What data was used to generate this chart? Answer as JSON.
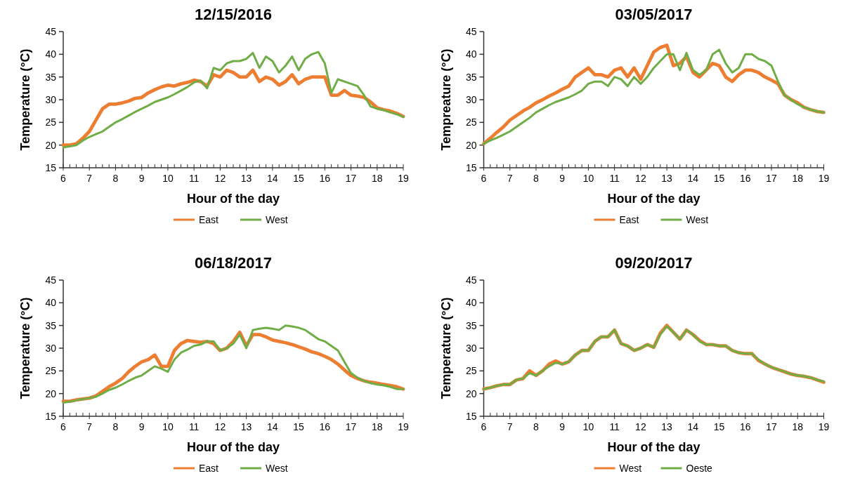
{
  "chart_data": [
    {
      "type": "line",
      "title": "12/15/2016",
      "xlabel": "Hour of the day",
      "ylabel": "Temperature  (°C)",
      "xlim": [
        6,
        19
      ],
      "ylim": [
        15,
        45
      ],
      "xticks": [
        6,
        7,
        8,
        9,
        10,
        11,
        12,
        13,
        14,
        15,
        16,
        17,
        18,
        19
      ],
      "yticks": [
        15,
        20,
        25,
        30,
        35,
        40,
        45
      ],
      "legend": "bottom",
      "grid": false,
      "marker": "none",
      "line_style": "solid",
      "x": [
        6,
        6.25,
        6.5,
        6.75,
        7,
        7.25,
        7.5,
        7.75,
        8,
        8.25,
        8.5,
        8.75,
        9,
        9.25,
        9.5,
        9.75,
        10,
        10.25,
        10.5,
        10.75,
        11,
        11.25,
        11.5,
        11.75,
        12,
        12.25,
        12.5,
        12.75,
        13,
        13.25,
        13.5,
        13.75,
        14,
        14.25,
        14.5,
        14.75,
        15,
        15.25,
        15.5,
        15.75,
        16,
        16.25,
        16.5,
        16.75,
        17,
        17.25,
        17.5,
        17.75,
        18,
        18.25,
        18.5,
        18.75,
        19
      ],
      "series": [
        {
          "name": "East",
          "color": "#ed7d31",
          "values": [
            20,
            20,
            20.3,
            21.5,
            23,
            25.5,
            28,
            29,
            29,
            29.3,
            29.7,
            30.3,
            30.5,
            31.5,
            32.2,
            32.8,
            33.2,
            33,
            33.5,
            33.8,
            34.3,
            34,
            33,
            35.5,
            35,
            36.5,
            36,
            35,
            35,
            36.5,
            34,
            35,
            34.5,
            33.2,
            34,
            35.5,
            33.5,
            34.5,
            35,
            35,
            35,
            31,
            31,
            32,
            31,
            30.8,
            30.5,
            29.5,
            28.2,
            27.8,
            27.5,
            27,
            26.3
          ]
        },
        {
          "name": "West",
          "color": "#70ad47",
          "values": [
            19.5,
            19.7,
            20,
            21,
            21.8,
            22.4,
            23,
            24,
            25,
            25.7,
            26.5,
            27.3,
            28,
            28.7,
            29.5,
            30,
            30.5,
            31.2,
            32,
            32.8,
            33.8,
            34.2,
            32.5,
            37,
            36.5,
            38,
            38.5,
            38.5,
            39,
            40.3,
            37,
            39.5,
            38.5,
            36,
            37.5,
            39.5,
            36.5,
            39,
            40,
            40.5,
            38,
            31.5,
            34.5,
            34,
            33.5,
            33,
            31,
            28.5,
            28,
            27.7,
            27.2,
            26.8,
            26.2
          ]
        }
      ]
    },
    {
      "type": "line",
      "title": "03/05/2017",
      "xlabel": "Hour of the day",
      "ylabel": "Tempreature  (°C)",
      "xlim": [
        6,
        19
      ],
      "ylim": [
        15,
        45
      ],
      "xticks": [
        6,
        7,
        8,
        9,
        10,
        11,
        12,
        13,
        14,
        15,
        16,
        17,
        18,
        19
      ],
      "yticks": [
        15,
        20,
        25,
        30,
        35,
        40,
        45
      ],
      "legend": "bottom",
      "grid": false,
      "marker": "none",
      "line_style": "solid",
      "x": [
        6,
        6.25,
        6.5,
        6.75,
        7,
        7.25,
        7.5,
        7.75,
        8,
        8.25,
        8.5,
        8.75,
        9,
        9.25,
        9.5,
        9.75,
        10,
        10.25,
        10.5,
        10.75,
        11,
        11.25,
        11.5,
        11.75,
        12,
        12.25,
        12.5,
        12.75,
        13,
        13.25,
        13.5,
        13.75,
        14,
        14.25,
        14.5,
        14.75,
        15,
        15.25,
        15.5,
        15.75,
        16,
        16.25,
        16.5,
        16.75,
        17,
        17.25,
        17.5,
        17.75,
        18,
        18.25,
        18.5,
        18.75,
        19
      ],
      "series": [
        {
          "name": "East",
          "color": "#ed7d31",
          "values": [
            20.3,
            21.5,
            22.8,
            24,
            25.5,
            26.5,
            27.5,
            28.3,
            29.3,
            30,
            30.8,
            31.5,
            32.3,
            33,
            35,
            36,
            37,
            35.5,
            35.5,
            35,
            36.5,
            37,
            35,
            37,
            34.5,
            37.5,
            40.5,
            41.5,
            42,
            37.5,
            38,
            39.5,
            36,
            35,
            36.5,
            38,
            37.5,
            35,
            34,
            35.5,
            36.5,
            36.5,
            36,
            35,
            34.3,
            33.5,
            31,
            30,
            29.3,
            28.3,
            27.8,
            27.4,
            27.2
          ]
        },
        {
          "name": "West",
          "color": "#70ad47",
          "values": [
            20.3,
            21,
            21.6,
            22.3,
            23,
            24,
            25,
            26,
            27.2,
            28,
            28.8,
            29.5,
            30,
            30.5,
            31.2,
            32,
            33.5,
            34,
            34,
            33,
            35,
            34.5,
            33,
            35,
            33.5,
            35,
            37,
            38.5,
            40,
            40,
            36.5,
            40.3,
            36.5,
            35.5,
            36.5,
            40,
            41,
            38,
            36,
            37,
            40,
            40,
            39,
            38.5,
            37.5,
            34,
            31,
            30,
            29,
            28.3,
            27.8,
            27.4,
            27.2
          ]
        }
      ]
    },
    {
      "type": "line",
      "title": "06/18/2017",
      "xlabel": "Hour of the day",
      "ylabel": "Temperature  (°C)",
      "xlim": [
        6,
        19
      ],
      "ylim": [
        15,
        45
      ],
      "xticks": [
        6,
        7,
        8,
        9,
        10,
        11,
        12,
        13,
        14,
        15,
        16,
        17,
        18,
        19
      ],
      "yticks": [
        15,
        20,
        25,
        30,
        35,
        40,
        45
      ],
      "legend": "bottom",
      "grid": false,
      "marker": "none",
      "line_style": "solid",
      "x": [
        6,
        6.25,
        6.5,
        6.75,
        7,
        7.25,
        7.5,
        7.75,
        8,
        8.25,
        8.5,
        8.75,
        9,
        9.25,
        9.5,
        9.75,
        10,
        10.25,
        10.5,
        10.75,
        11,
        11.25,
        11.5,
        11.75,
        12,
        12.25,
        12.5,
        12.75,
        13,
        13.25,
        13.5,
        13.75,
        14,
        14.25,
        14.5,
        14.75,
        15,
        15.25,
        15.5,
        15.75,
        16,
        16.25,
        16.5,
        16.75,
        17,
        17.25,
        17.5,
        17.75,
        18,
        18.25,
        18.5,
        18.75,
        19
      ],
      "series": [
        {
          "name": "East",
          "color": "#ed7d31",
          "values": [
            18.3,
            18.3,
            18.6,
            18.8,
            19,
            19.5,
            20.5,
            21.5,
            22.3,
            23.3,
            24.8,
            26,
            27,
            27.5,
            28.5,
            26,
            26,
            29.5,
            31,
            31.7,
            31.5,
            31.3,
            31.5,
            31,
            29.5,
            30,
            31.5,
            33.5,
            30.5,
            33,
            33,
            32.5,
            31.8,
            31.5,
            31.2,
            30.8,
            30.3,
            29.8,
            29.2,
            28.8,
            28.2,
            27.5,
            26.5,
            25.2,
            24,
            23.3,
            22.8,
            22.5,
            22.3,
            22,
            21.8,
            21.5,
            21
          ]
        },
        {
          "name": "West",
          "color": "#70ad47",
          "values": [
            18,
            18.2,
            18.5,
            18.8,
            19,
            19.3,
            20,
            20.8,
            21.3,
            22,
            22.8,
            23.5,
            24,
            25,
            26,
            25.5,
            24.8,
            27.5,
            29,
            29.7,
            30.5,
            30.8,
            31.5,
            31.5,
            29.5,
            30,
            31,
            33,
            30,
            34,
            34.3,
            34.5,
            34.3,
            34,
            35,
            34.8,
            34.5,
            34,
            33,
            32,
            31.5,
            30.5,
            29.5,
            27,
            24.5,
            23.5,
            22.8,
            22.3,
            22,
            21.8,
            21.5,
            21,
            21
          ]
        }
      ]
    },
    {
      "type": "line",
      "title": "09/20/2017",
      "xlabel": "Hour of the day",
      "ylabel": "Temperature  (°C)",
      "xlim": [
        6,
        19
      ],
      "ylim": [
        15,
        45
      ],
      "xticks": [
        6,
        7,
        8,
        9,
        10,
        11,
        12,
        13,
        14,
        15,
        16,
        17,
        18,
        19
      ],
      "yticks": [
        15,
        20,
        25,
        30,
        35,
        40,
        45
      ],
      "legend": "bottom",
      "grid": false,
      "marker": "none",
      "line_style": "solid",
      "x": [
        6,
        6.25,
        6.5,
        6.75,
        7,
        7.25,
        7.5,
        7.75,
        8,
        8.25,
        8.5,
        8.75,
        9,
        9.25,
        9.5,
        9.75,
        10,
        10.25,
        10.5,
        10.75,
        11,
        11.25,
        11.5,
        11.75,
        12,
        12.25,
        12.5,
        12.75,
        13,
        13.25,
        13.5,
        13.75,
        14,
        14.25,
        14.5,
        14.75,
        15,
        15.25,
        15.5,
        15.75,
        16,
        16.25,
        16.5,
        16.75,
        17,
        17.25,
        17.5,
        17.75,
        18,
        18.25,
        18.5,
        18.75,
        19
      ],
      "series": [
        {
          "name": "West",
          "color": "#ed7d31",
          "values": [
            21,
            21.3,
            21.7,
            22,
            22,
            23,
            23.3,
            25,
            24,
            25,
            26.5,
            27.2,
            26.5,
            27,
            28.5,
            29.5,
            29.5,
            31.5,
            32.5,
            32.5,
            34,
            31,
            30.5,
            29.5,
            30,
            30.8,
            30.2,
            33.3,
            35,
            33.5,
            32,
            34,
            33,
            31.7,
            30.8,
            30.8,
            30.5,
            30.5,
            29.5,
            29,
            28.8,
            28.8,
            27.3,
            26.5,
            25.8,
            25.3,
            24.8,
            24.3,
            24,
            23.8,
            23.5,
            23,
            22.5
          ]
        },
        {
          "name": "Oeste",
          "color": "#70ad47",
          "values": [
            21,
            21.3,
            21.7,
            22,
            22,
            23,
            23.3,
            24.5,
            24,
            25,
            26,
            26.8,
            26.5,
            27,
            28.5,
            29.5,
            29.5,
            31.5,
            32.5,
            32.5,
            34,
            31,
            30.5,
            29.5,
            30,
            30.8,
            30.2,
            33,
            34.8,
            33.5,
            32,
            34,
            33,
            31.5,
            30.8,
            30.8,
            30.5,
            30.5,
            29.5,
            29,
            28.8,
            28.8,
            27.5,
            26.5,
            25.8,
            25.3,
            24.8,
            24.3,
            24,
            23.8,
            23.5,
            23,
            22.7
          ]
        }
      ]
    }
  ]
}
